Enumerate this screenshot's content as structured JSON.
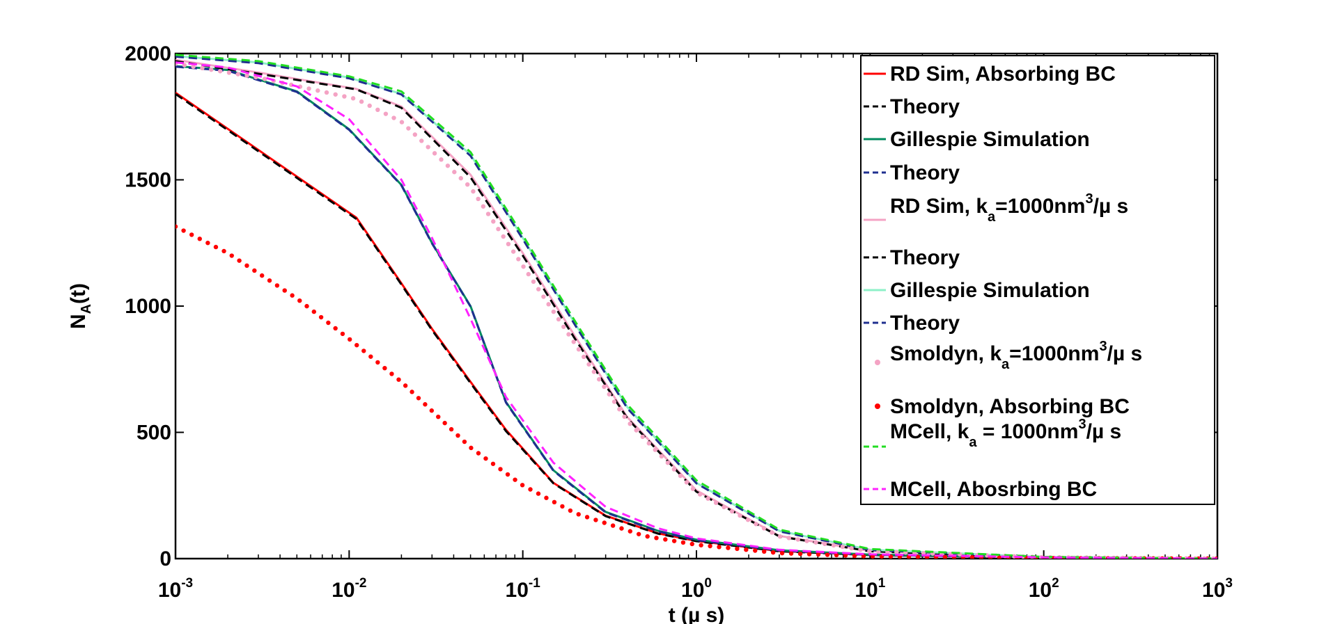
{
  "chart_data": {
    "type": "line",
    "xlabel": "t (µ s)",
    "ylabel": "N_A(t)",
    "xscale": "log",
    "xlim": [
      0.001,
      1000
    ],
    "ylim": [
      0,
      2000
    ],
    "xticks": [
      0.001,
      0.01,
      0.1,
      1,
      10,
      100,
      1000
    ],
    "xtick_labels": [
      {
        "base": "10",
        "exp": "-3"
      },
      {
        "base": "10",
        "exp": "-2"
      },
      {
        "base": "10",
        "exp": "-1"
      },
      {
        "base": "10",
        "exp": "0"
      },
      {
        "base": "10",
        "exp": "1"
      },
      {
        "base": "10",
        "exp": "2"
      },
      {
        "base": "10",
        "exp": "3"
      }
    ],
    "yticks": [
      0,
      500,
      1000,
      1500,
      2000
    ],
    "ytick_labels": [
      "0",
      "500",
      "1000",
      "1500",
      "2000"
    ],
    "grid": false,
    "legend_position": "top-right",
    "series": [
      {
        "name": "RD Sim, Absorbing BC",
        "color": "#ff0000",
        "style": "solid",
        "x": [
          0.001,
          0.011,
          0.02,
          0.03,
          0.05,
          0.08,
          0.15,
          0.3,
          0.6,
          1,
          3,
          10,
          100,
          1000
        ],
        "y": [
          1845,
          1350,
          1090,
          910,
          700,
          510,
          300,
          170,
          100,
          70,
          30,
          15,
          4,
          0
        ]
      },
      {
        "name": "Theory",
        "color": "#000000",
        "style": "dashed",
        "x": [
          0.001,
          0.011,
          0.02,
          0.03,
          0.05,
          0.08,
          0.15,
          0.3,
          0.6,
          1,
          3,
          10,
          100,
          1000
        ],
        "y": [
          1840,
          1345,
          1085,
          905,
          695,
          505,
          298,
          168,
          99,
          69,
          29,
          14,
          4,
          0
        ]
      },
      {
        "name": "Gillespie Simulation",
        "color": "#008b5e",
        "style": "solid",
        "x": [
          0.001,
          0.002,
          0.005,
          0.01,
          0.02,
          0.03,
          0.05,
          0.08,
          0.15,
          0.3,
          0.6,
          1,
          3,
          10,
          100,
          1000
        ],
        "y": [
          1950,
          1935,
          1850,
          1700,
          1480,
          1250,
          1000,
          620,
          350,
          185,
          110,
          75,
          33,
          16,
          5,
          0
        ]
      },
      {
        "name": "Theory",
        "color": "#1f2f8f",
        "style": "dashed",
        "x": [
          0.001,
          0.002,
          0.005,
          0.01,
          0.02,
          0.03,
          0.05,
          0.08,
          0.15,
          0.3,
          0.6,
          1,
          3,
          10,
          100,
          1000
        ],
        "y": [
          1948,
          1932,
          1848,
          1698,
          1478,
          1248,
          998,
          618,
          348,
          183,
          108,
          73,
          32,
          15,
          5,
          0
        ]
      },
      {
        "name": "RD Sim, k_a=1000nm^3/µ s",
        "color": "#f4a3c4",
        "style": "solid",
        "x": [
          0.001,
          0.003,
          0.011,
          0.02,
          0.05,
          0.1,
          0.2,
          0.4,
          1,
          3,
          10,
          100,
          1000
        ],
        "y": [
          1975,
          1925,
          1860,
          1790,
          1520,
          1210,
          880,
          560,
          270,
          90,
          30,
          5,
          0
        ]
      },
      {
        "name": "Theory",
        "color": "#000000",
        "style": "dashed",
        "x": [
          0.001,
          0.003,
          0.011,
          0.02,
          0.05,
          0.1,
          0.2,
          0.4,
          1,
          3,
          10,
          100,
          1000
        ],
        "y": [
          1970,
          1920,
          1858,
          1785,
          1510,
          1200,
          870,
          555,
          265,
          88,
          29,
          5,
          0
        ]
      },
      {
        "name": "Gillespie Simulation",
        "color": "#8ef0c8",
        "style": "solid",
        "x": [
          0.001,
          0.003,
          0.01,
          0.02,
          0.05,
          0.1,
          0.2,
          0.4,
          1,
          3,
          10,
          100,
          1000
        ],
        "y": [
          1990,
          1965,
          1905,
          1840,
          1600,
          1270,
          930,
          600,
          300,
          110,
          35,
          6,
          0
        ]
      },
      {
        "name": "Theory",
        "color": "#1f2f8f",
        "style": "dashed",
        "x": [
          0.001,
          0.003,
          0.01,
          0.02,
          0.05,
          0.1,
          0.2,
          0.4,
          1,
          3,
          10,
          100,
          1000
        ],
        "y": [
          1988,
          1962,
          1902,
          1838,
          1595,
          1265,
          925,
          595,
          298,
          108,
          34,
          6,
          0
        ]
      },
      {
        "name": "Smoldyn, k_a=1000nm^3/µ s",
        "color": "#f4a3c4",
        "style": "dotted",
        "x": [
          0.001,
          0.003,
          0.011,
          0.02,
          0.05,
          0.1,
          0.2,
          0.4,
          1,
          3,
          10,
          100,
          1000
        ],
        "y": [
          1960,
          1905,
          1820,
          1730,
          1470,
          1160,
          850,
          545,
          262,
          88,
          29,
          5,
          0
        ]
      },
      {
        "name": "Smoldyn, Absorbing BC",
        "color": "#ff0000",
        "style": "dotted",
        "x": [
          0.001,
          0.002,
          0.005,
          0.01,
          0.02,
          0.05,
          0.1,
          0.2,
          0.5,
          1,
          3,
          10,
          100,
          1000
        ],
        "y": [
          1315,
          1210,
          1030,
          870,
          700,
          440,
          290,
          180,
          90,
          55,
          22,
          9,
          2,
          0
        ]
      },
      {
        "name": "MCell, k_a = 1000nm^3/µ s",
        "color": "#22dd22",
        "style": "dashed",
        "x": [
          0.001,
          0.003,
          0.01,
          0.02,
          0.05,
          0.1,
          0.2,
          0.4,
          1,
          3,
          10,
          100,
          1000
        ],
        "y": [
          1995,
          1970,
          1910,
          1850,
          1610,
          1280,
          940,
          610,
          310,
          115,
          38,
          7,
          0
        ]
      },
      {
        "name": "MCell, Abosrbing BC",
        "color": "#ff22ff",
        "style": "dashed",
        "x": [
          0.001,
          0.002,
          0.005,
          0.01,
          0.02,
          0.03,
          0.05,
          0.08,
          0.15,
          0.3,
          0.6,
          1,
          3,
          10,
          100,
          1000
        ],
        "y": [
          1965,
          1945,
          1870,
          1740,
          1500,
          1270,
          950,
          640,
          380,
          205,
          120,
          80,
          35,
          17,
          5,
          0
        ]
      }
    ],
    "legend": [
      {
        "label": "RD Sim, Absorbing BC",
        "color": "#ff0000",
        "style": "solid"
      },
      {
        "label": "Theory",
        "color": "#000000",
        "style": "dashed"
      },
      {
        "label": "Gillespie Simulation",
        "color": "#008b5e",
        "style": "solid"
      },
      {
        "label": "Theory",
        "color": "#1f2f8f",
        "style": "dashed"
      },
      {
        "label": "RD Sim, k",
        "sub": "a",
        "after": "=1000nm",
        "sup": "3",
        "tail": "/µ s",
        "color": "#f4a3c4",
        "style": "solid"
      },
      {
        "label": "Theory",
        "color": "#000000",
        "style": "dashed"
      },
      {
        "label": "Gillespie Simulation",
        "color": "#8ef0c8",
        "style": "solid"
      },
      {
        "label": "Theory",
        "color": "#1f2f8f",
        "style": "dashed"
      },
      {
        "label": "Smoldyn, k",
        "sub": "a",
        "after": "=1000nm",
        "sup": "3",
        "tail": "/µ s",
        "color": "#f4a3c4",
        "style": "dot"
      },
      {
        "label": "Smoldyn, Absorbing BC",
        "color": "#ff0000",
        "style": "dot"
      },
      {
        "label": "MCell, k",
        "sub": "a",
        "after": " = 1000nm",
        "sup": "3",
        "tail": "/µ s",
        "color": "#22dd22",
        "style": "dashed"
      },
      {
        "label": "MCell, Abosrbing BC",
        "color": "#ff22ff",
        "style": "dashed"
      }
    ]
  }
}
